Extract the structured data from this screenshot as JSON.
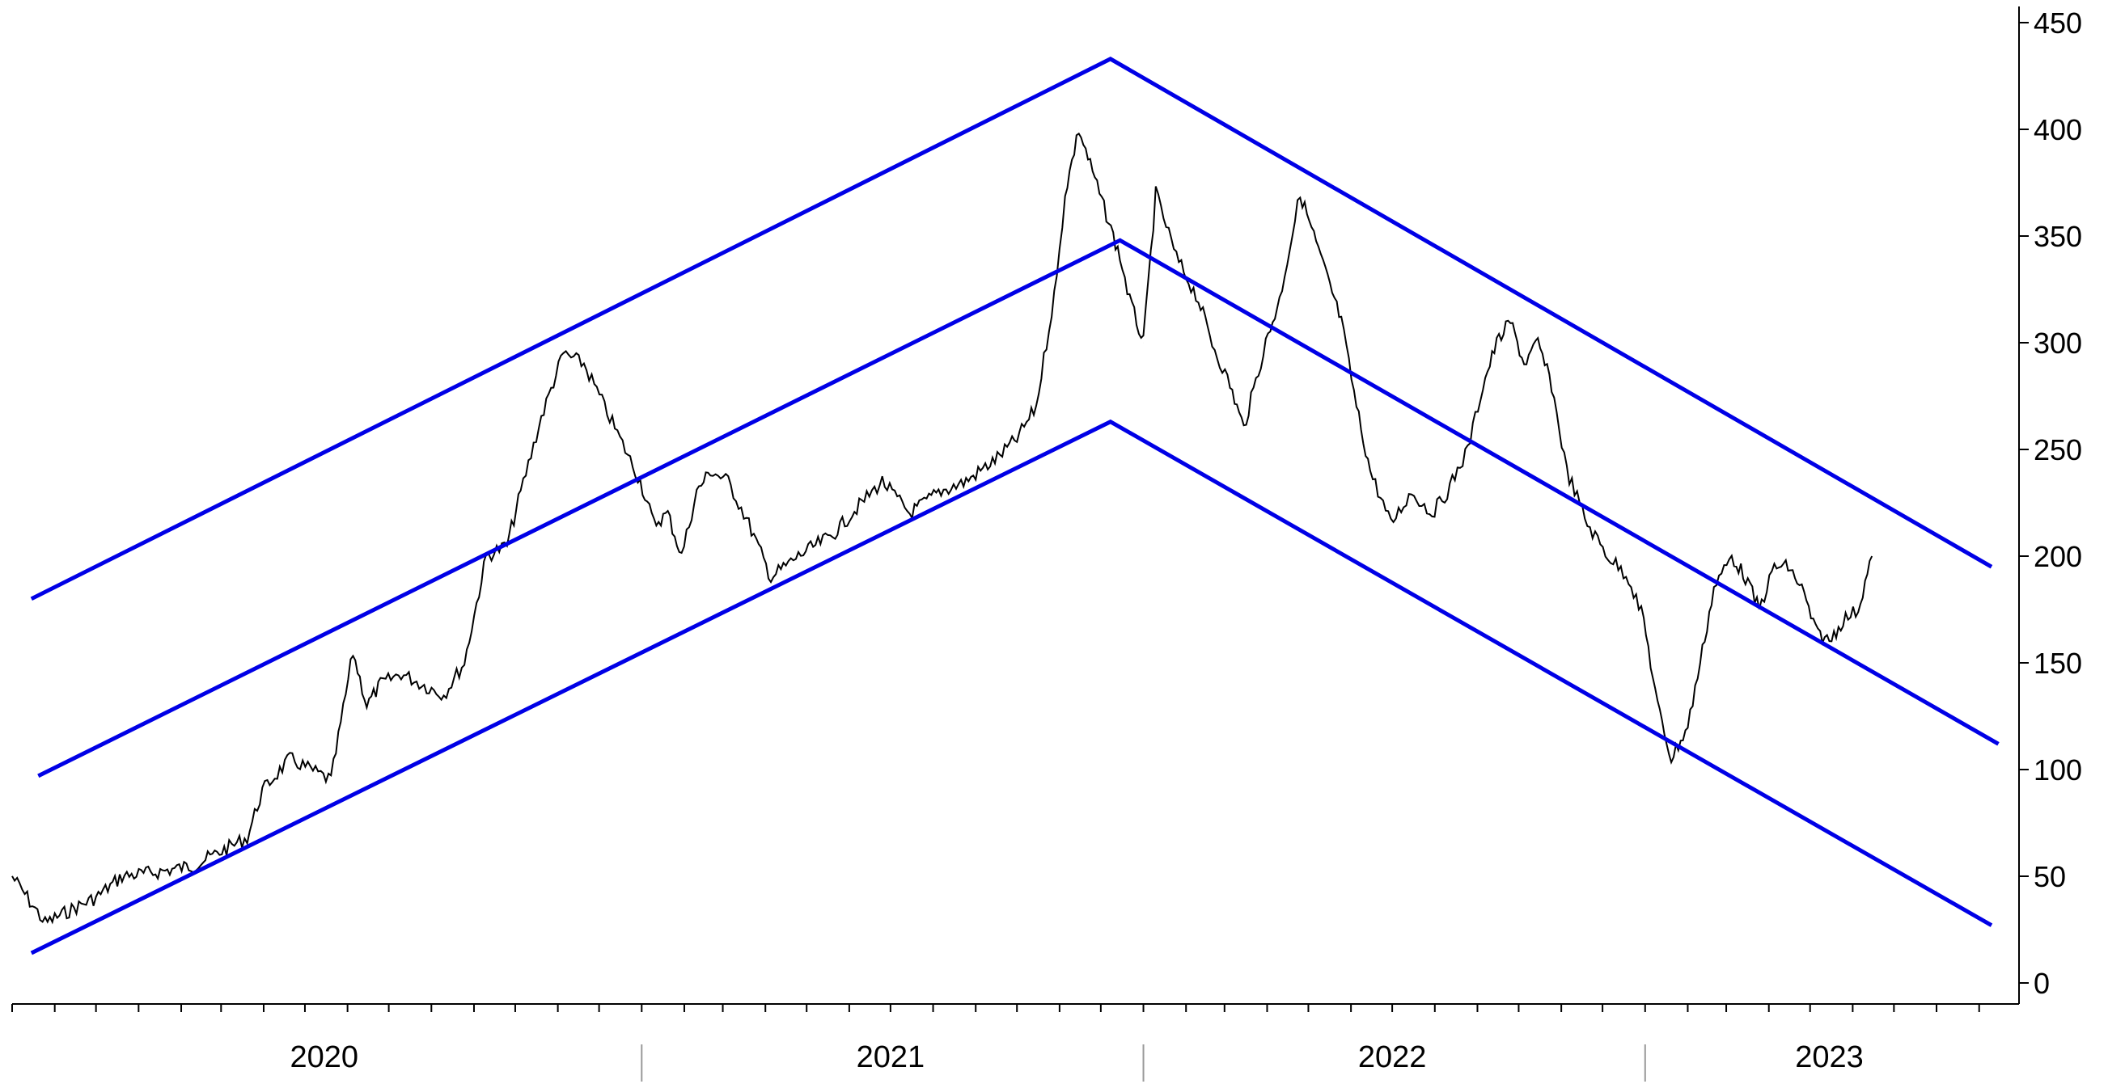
{
  "chart_data": {
    "type": "line",
    "title": "",
    "xlabel": "",
    "ylabel": "",
    "ylim": [
      0,
      450
    ],
    "y_axis_position": "right",
    "grid": false,
    "legend": "none",
    "y_ticks": [
      0,
      50,
      100,
      150,
      200,
      250,
      300,
      350,
      400,
      450
    ],
    "y_tick_labels": [
      "0",
      "50",
      "100",
      "150",
      "200",
      "250",
      "300",
      "350",
      "400",
      "450"
    ],
    "x_range": [
      "2019-10-01",
      "2023-09-30"
    ],
    "x_year_labels": [
      {
        "label": "2020",
        "date": "2020-05-15"
      },
      {
        "label": "2021",
        "date": "2021-07-01"
      },
      {
        "label": "2022",
        "date": "2022-07-01"
      },
      {
        "label": "2023",
        "date": "2023-05-15"
      }
    ],
    "x_year_boundaries": [
      "2021-01-01",
      "2022-01-01",
      "2023-01-01"
    ],
    "colors": {
      "price": "#000000",
      "channel": "#0000e6",
      "axis": "#000000"
    },
    "series": [
      {
        "type": "line",
        "x": [
          "2019-10-01",
          "2019-10-12",
          "2019-10-25",
          "2019-11-15",
          "2019-12-01",
          "2019-12-20",
          "2020-01-15",
          "2020-02-10",
          "2020-03-05",
          "2020-03-20",
          "2020-03-31",
          "2020-04-20",
          "2020-05-05",
          "2020-05-20",
          "2020-06-05",
          "2020-06-15",
          "2020-06-25",
          "2020-07-10",
          "2020-07-25",
          "2020-08-10",
          "2020-08-25",
          "2020-09-10",
          "2020-09-25",
          "2020-10-05",
          "2020-10-20",
          "2020-11-05",
          "2020-11-20",
          "2020-12-05",
          "2020-12-20",
          "2020-12-31",
          "2021-01-10",
          "2021-01-20",
          "2021-01-30",
          "2021-02-10",
          "2021-02-20",
          "2021-03-05",
          "2021-03-20",
          "2021-04-05",
          "2021-04-25",
          "2021-05-20",
          "2021-06-10",
          "2021-06-25",
          "2021-07-15",
          "2021-08-05",
          "2021-08-25",
          "2021-09-15",
          "2021-10-01",
          "2021-10-15",
          "2021-10-30",
          "2021-11-05",
          "2021-11-15",
          "2021-11-25",
          "2021-12-05",
          "2021-12-15",
          "2021-12-22",
          "2022-01-01",
          "2022-01-10",
          "2022-01-25",
          "2022-02-10",
          "2022-02-20",
          "2022-03-05",
          "2022-03-15",
          "2022-03-31",
          "2022-04-10",
          "2022-04-25",
          "2022-05-05",
          "2022-05-15",
          "2022-05-25",
          "2022-06-05",
          "2022-06-15",
          "2022-06-30",
          "2022-07-15",
          "2022-07-30",
          "2022-08-10",
          "2022-08-25",
          "2022-09-05",
          "2022-09-15",
          "2022-09-25",
          "2022-10-05",
          "2022-10-15",
          "2022-10-25",
          "2022-11-05",
          "2022-11-20",
          "2022-12-05",
          "2022-12-20",
          "2022-12-31",
          "2023-01-10",
          "2023-01-20",
          "2023-02-01",
          "2023-02-10",
          "2023-02-20",
          "2023-03-05",
          "2023-03-15",
          "2023-03-25",
          "2023-04-05",
          "2023-04-15",
          "2023-04-25",
          "2023-05-05",
          "2023-05-15",
          "2023-05-25",
          "2023-06-05",
          "2023-06-15"
        ],
        "y": [
          50,
          40,
          28,
          35,
          40,
          50,
          52,
          55,
          63,
          68,
          90,
          105,
          100,
          95,
          155,
          130,
          140,
          145,
          140,
          135,
          150,
          200,
          205,
          230,
          265,
          295,
          290,
          270,
          250,
          235,
          215,
          220,
          200,
          230,
          240,
          235,
          215,
          190,
          200,
          210,
          225,
          235,
          220,
          230,
          235,
          245,
          255,
          270,
          330,
          370,
          400,
          380,
          360,
          340,
          320,
          300,
          370,
          340,
          320,
          300,
          280,
          260,
          300,
          320,
          370,
          350,
          330,
          310,
          270,
          240,
          215,
          230,
          220,
          230,
          250,
          280,
          300,
          310,
          290,
          300,
          280,
          240,
          215,
          200,
          190,
          170,
          130,
          105,
          120,
          150,
          185,
          200,
          190,
          175,
          195,
          195,
          185,
          165,
          160,
          170,
          175,
          200
        ]
      }
    ],
    "channels": [
      {
        "x": [
          "2019-10-15",
          "2021-12-08",
          "2023-09-10"
        ],
        "y": [
          180,
          433,
          195
        ]
      },
      {
        "x": [
          "2019-10-20",
          "2021-12-15",
          "2023-09-15"
        ],
        "y": [
          97,
          348,
          112
        ]
      },
      {
        "x": [
          "2019-10-15",
          "2021-12-08",
          "2023-09-10"
        ],
        "y": [
          14,
          263,
          27
        ]
      }
    ]
  }
}
